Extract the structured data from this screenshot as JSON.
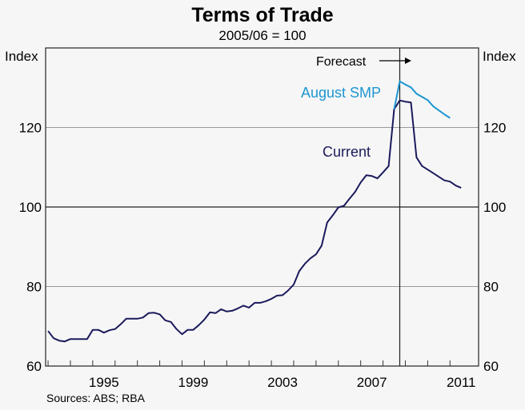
{
  "chart_data": {
    "type": "line",
    "title": "Terms of Trade",
    "subtitle": "2005/06 = 100",
    "ylabel_left": "Index",
    "ylabel_right": "Index",
    "ylim": [
      60,
      140
    ],
    "yticks": [
      60,
      80,
      100,
      120
    ],
    "xlim": [
      1992.89,
      2012.28
    ],
    "xtick_years": [
      1993,
      1994,
      1995,
      1996,
      1997,
      1998,
      1999,
      2000,
      2001,
      2002,
      2003,
      2004,
      2005,
      2006,
      2007,
      2008,
      2009,
      2010,
      2011
    ],
    "xtick_labels": [
      "1995",
      "1999",
      "2003",
      "2007",
      "2011"
    ],
    "grid": true,
    "forecast": {
      "label": "Forecast",
      "x": 2008.75
    },
    "series": [
      {
        "name": "Current",
        "color": "#1b1a5c",
        "x_start": 1993.0,
        "x_step": 0.25,
        "values": [
          68.8,
          67.0,
          66.4,
          66.2,
          66.8,
          66.8,
          66.8,
          66.8,
          69.1,
          69.1,
          68.4,
          69.0,
          69.3,
          70.5,
          71.9,
          71.9,
          71.9,
          72.2,
          73.3,
          73.4,
          73.0,
          71.5,
          71.1,
          69.3,
          68.0,
          69.1,
          69.1,
          70.3,
          71.7,
          73.5,
          73.3,
          74.3,
          73.7,
          73.9,
          74.5,
          75.2,
          74.7,
          75.9,
          75.9,
          76.3,
          76.9,
          77.7,
          77.8,
          79.0,
          80.5,
          83.9,
          85.7,
          87.1,
          88.1,
          90.3,
          96.1,
          97.9,
          99.9,
          100.3,
          102.1,
          103.8,
          106.2,
          108.0,
          107.8,
          107.2,
          108.7,
          110.3,
          124.6,
          126.8,
          126.5,
          126.3,
          112.5,
          110.3,
          109.4,
          108.5,
          107.6,
          106.7,
          106.4,
          105.4,
          104.8
        ]
      },
      {
        "name": "August SMP",
        "color": "#1e96d2",
        "x_start": 2008.5,
        "x_step": 0.25,
        "values": [
          124.6,
          131.6,
          130.8,
          130.1,
          128.5,
          127.7,
          126.9,
          125.3,
          124.3,
          123.3,
          122.4
        ]
      }
    ],
    "source": "Sources: ABS; RBA"
  }
}
